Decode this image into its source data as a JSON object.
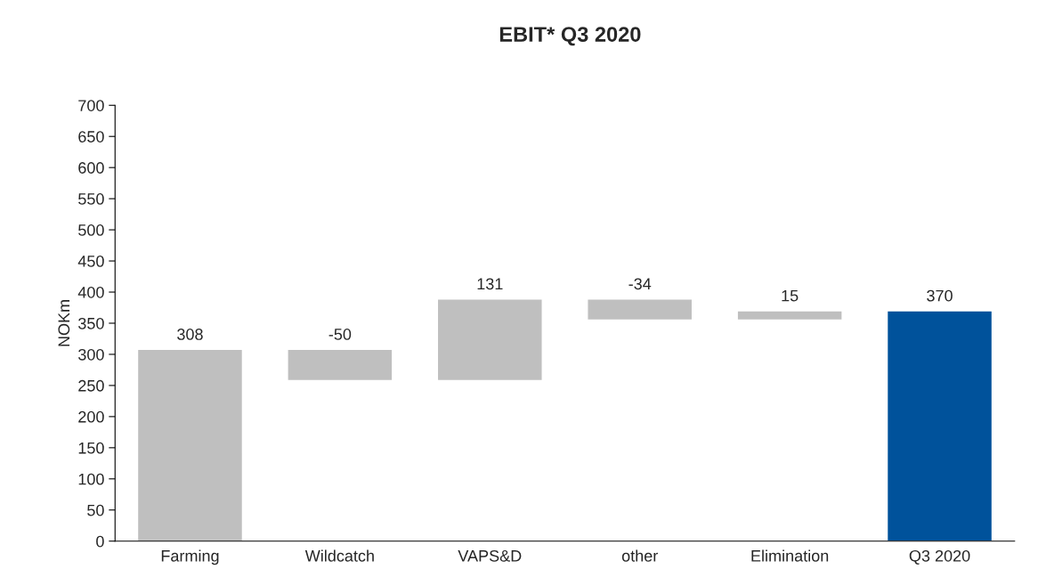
{
  "chart_data": {
    "type": "bar",
    "title": "EBIT* Q3 2020",
    "ylabel": "NOKm",
    "categories": [
      "Farming",
      "Wildcatch",
      "VAPS&D",
      "other",
      "Elimination",
      "Q3 2020"
    ],
    "values": [
      308,
      -50,
      131,
      -34,
      15,
      370
    ],
    "base": [
      0,
      308,
      258,
      389,
      355,
      0
    ],
    "colors": [
      "#bfbfbf",
      "#bfbfbf",
      "#bfbfbf",
      "#bfbfbf",
      "#bfbfbf",
      "#00529b"
    ],
    "ylim": [
      0,
      700
    ],
    "yticks": [
      0,
      50,
      100,
      150,
      200,
      250,
      300,
      350,
      400,
      450,
      500,
      550,
      600,
      650,
      700
    ],
    "data_labels": true,
    "grid": false,
    "legend": false
  }
}
